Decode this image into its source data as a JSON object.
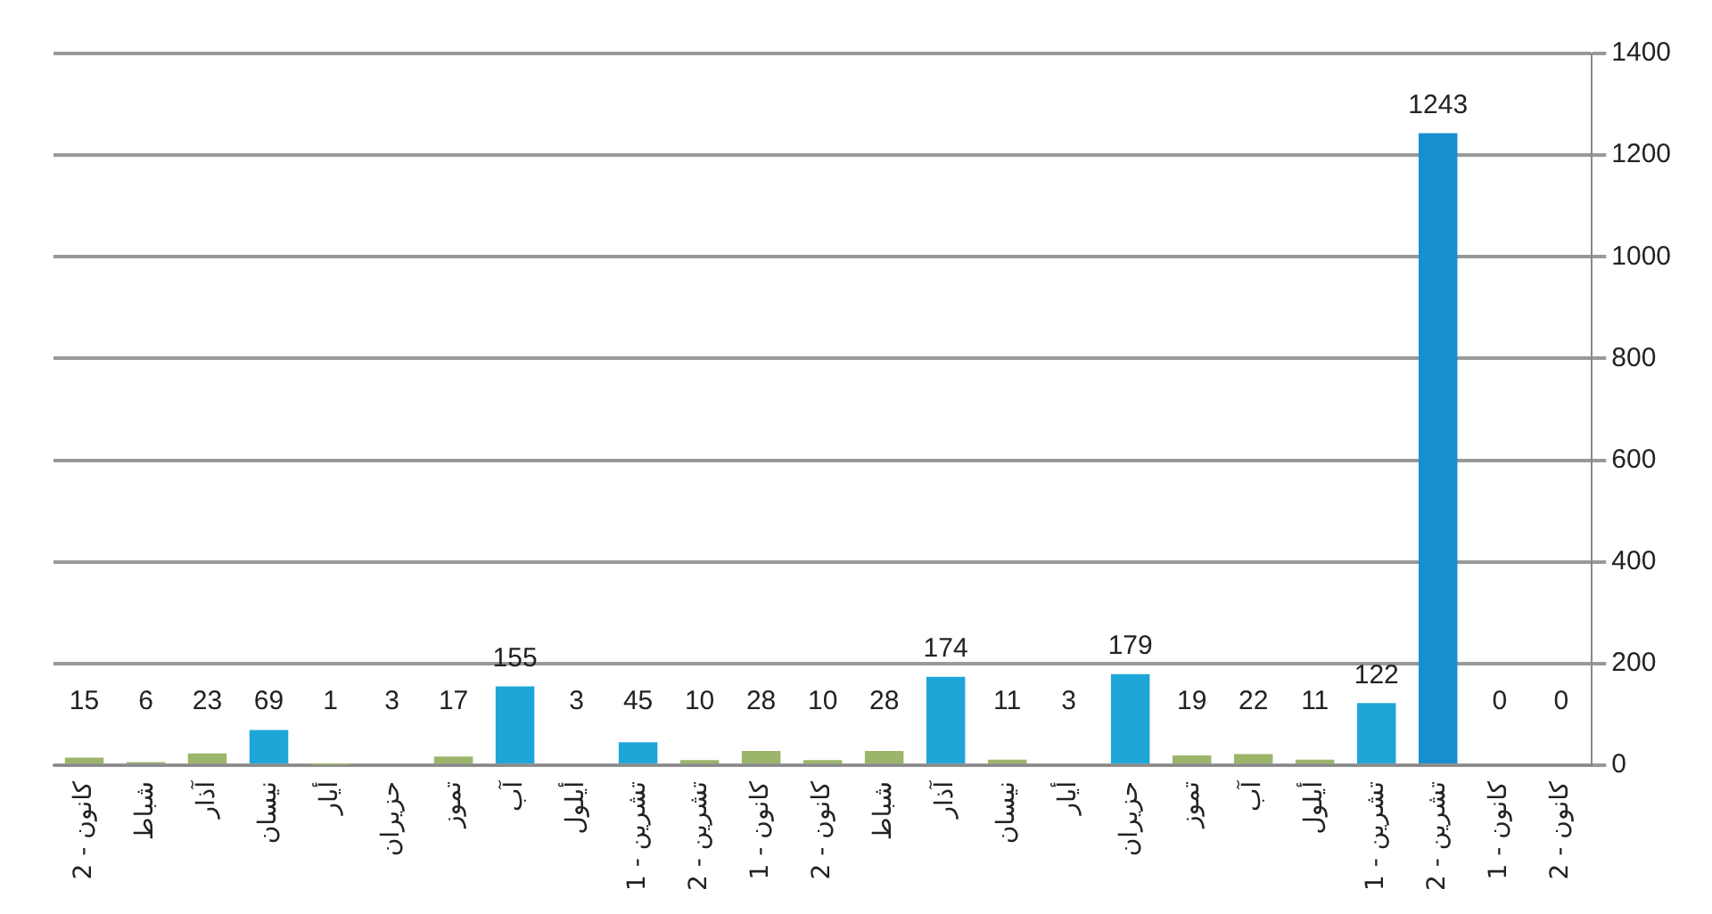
{
  "chart_data": {
    "type": "bar",
    "categories": [
      "كانون - 2",
      "شباط",
      "آذار",
      "نيسان",
      "أيار",
      "حزيران",
      "تموز",
      "آب",
      "أيلول",
      "تشرين - 1",
      "تشرين - 2",
      "كانون - 1",
      "كانون - 2",
      "شباط",
      "آذار",
      "نيسان",
      "أيار",
      "حزيران",
      "تموز",
      "آب",
      "أيلول",
      "تشرين - 1",
      "تشرين - 2",
      "كانون - 1",
      "كانون - 2"
    ],
    "values": [
      15,
      6,
      23,
      69,
      1,
      3,
      17,
      155,
      3,
      45,
      10,
      28,
      10,
      28,
      174,
      11,
      3,
      179,
      19,
      22,
      11,
      122,
      1243,
      0,
      0
    ],
    "colors": [
      "#9bb56a",
      "#9bb56a",
      "#9bb56a",
      "#1fa6d8",
      "#9bb56a",
      "#9bb56a",
      "#9bb56a",
      "#1fa6d8",
      "#9bb56a",
      "#1fa6d8",
      "#9bb56a",
      "#9bb56a",
      "#9bb56a",
      "#9bb56a",
      "#1fa6d8",
      "#9bb56a",
      "#9bb56a",
      "#1fa6d8",
      "#9bb56a",
      "#9bb56a",
      "#9bb56a",
      "#1fa6d8",
      "#1a8fcf",
      "#9bb56a",
      "#9bb56a"
    ],
    "ylim": [
      0,
      1400
    ],
    "yticks": [
      0,
      200,
      400,
      600,
      800,
      1000,
      1200,
      1400
    ],
    "grid": "y",
    "data_labels": true,
    "legend": false
  }
}
